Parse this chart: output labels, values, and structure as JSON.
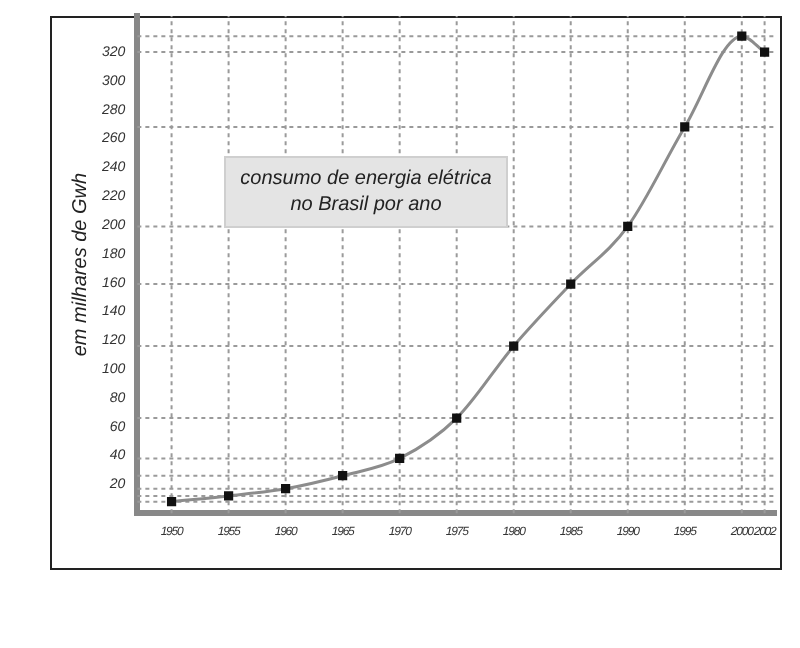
{
  "chart_data": {
    "type": "line",
    "title": "consumo de energia elétrica no Brasil por ano",
    "ylabel": "em milhares de Gwh",
    "x": [
      1950,
      1955,
      1960,
      1965,
      1970,
      1975,
      1980,
      1985,
      1990,
      1995,
      2000,
      2002
    ],
    "series": [
      {
        "color": "#8c8c8c",
        "values": [
          8,
          12,
          17,
          26,
          38,
          66,
          116,
          159,
          199,
          268,
          331,
          320
        ]
      }
    ],
    "xlim": [
      1947,
      2003
    ],
    "xticks": [
      1950,
      1955,
      1960,
      1965,
      1970,
      1975,
      1980,
      1985,
      1990,
      1995,
      2000,
      2002
    ],
    "ylim": [
      0,
      345
    ],
    "yticks": [
      20,
      40,
      60,
      80,
      100,
      120,
      140,
      160,
      180,
      200,
      220,
      240,
      260,
      280,
      300,
      320
    ],
    "ref_lines": [
      {
        "axis": "y",
        "value": 8,
        "line_style": "dashed"
      },
      {
        "axis": "y",
        "value": 12,
        "line_style": "dashed"
      },
      {
        "axis": "y",
        "value": 17,
        "line_style": "dashed"
      },
      {
        "axis": "y",
        "value": 26,
        "line_style": "dashed"
      },
      {
        "axis": "y",
        "value": 38,
        "line_style": "dashed"
      },
      {
        "axis": "y",
        "value": 66,
        "line_style": "dashed"
      },
      {
        "axis": "y",
        "value": 116,
        "line_style": "dashed"
      },
      {
        "axis": "y",
        "value": 159,
        "line_style": "dashed"
      },
      {
        "axis": "y",
        "value": 199,
        "line_style": "dashed"
      },
      {
        "axis": "y",
        "value": 268,
        "line_style": "dashed"
      },
      {
        "axis": "y",
        "value": 331,
        "line_style": "dashed"
      },
      {
        "axis": "y",
        "value": 320,
        "line_style": "dashed"
      },
      {
        "axis": "x",
        "value": 1950,
        "line_style": "dashed"
      },
      {
        "axis": "x",
        "value": 1955,
        "line_style": "dashed"
      },
      {
        "axis": "x",
        "value": 1960,
        "line_style": "dashed"
      },
      {
        "axis": "x",
        "value": 1965,
        "line_style": "dashed"
      },
      {
        "axis": "x",
        "value": 1970,
        "line_style": "dashed"
      },
      {
        "axis": "x",
        "value": 1975,
        "line_style": "dashed"
      },
      {
        "axis": "x",
        "value": 1980,
        "line_style": "dashed"
      },
      {
        "axis": "x",
        "value": 1985,
        "line_style": "dashed"
      },
      {
        "axis": "x",
        "value": 1990,
        "line_style": "dashed"
      },
      {
        "axis": "x",
        "value": 1995,
        "line_style": "dashed"
      },
      {
        "axis": "x",
        "value": 2000,
        "line_style": "dashed"
      },
      {
        "axis": "x",
        "value": 2002,
        "line_style": "dashed"
      }
    ],
    "marker": "square",
    "grid": false,
    "legend": false
  }
}
